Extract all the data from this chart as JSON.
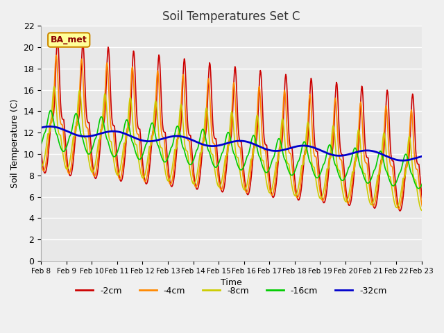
{
  "title": "Soil Temperatures Set C",
  "xlabel": "Time",
  "ylabel": "Soil Temperature (C)",
  "ylim": [
    0,
    22
  ],
  "yticks": [
    0,
    2,
    4,
    6,
    8,
    10,
    12,
    14,
    16,
    18,
    20,
    22
  ],
  "x_tick_labels": [
    "Feb 8",
    "Feb 9",
    "Feb 10",
    "Feb 11",
    "Feb 12",
    "Feb 13",
    "Feb 14",
    "Feb 15",
    "Feb 16",
    "Feb 17",
    "Feb 18",
    "Feb 19",
    "Feb 20",
    "Feb 21",
    "Feb 22",
    "Feb 23"
  ],
  "series_colors": [
    "#cc0000",
    "#ff8800",
    "#cccc00",
    "#00cc00",
    "#0000cc"
  ],
  "series_labels": [
    "-2cm",
    "-4cm",
    "-8cm",
    "-16cm",
    "-32cm"
  ],
  "line_widths": [
    1.2,
    1.2,
    1.2,
    1.2,
    2.0
  ],
  "plot_bg_color": "#e8e8e8",
  "fig_bg_color": "#f0f0f0",
  "annotation_text": "BA_met",
  "annotation_bg": "#ffff99",
  "annotation_border": "#cc8800"
}
